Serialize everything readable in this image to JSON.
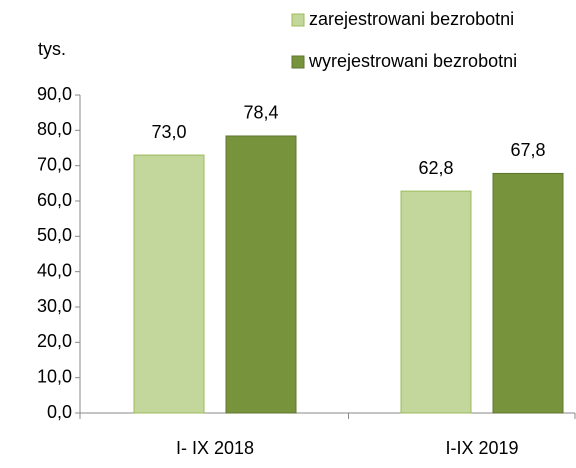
{
  "chart_data": {
    "type": "bar",
    "y_label": "tys.",
    "categories": [
      "I- IX 2018",
      "I-IX 2019"
    ],
    "series": [
      {
        "name": "zarejestrowani bezrobotni",
        "color": "#c3d69b",
        "values": [
          73.0,
          62.8
        ],
        "value_labels": [
          "73,0",
          "62,8"
        ]
      },
      {
        "name": "wyrejestrowani bezrobotni",
        "color": "#77933c",
        "values": [
          78.4,
          67.8
        ],
        "value_labels": [
          "78,4",
          "67,8"
        ]
      }
    ],
    "ylim": [
      0,
      90
    ],
    "yticks": [
      {
        "value": 0,
        "label": "0,0"
      },
      {
        "value": 10,
        "label": "10,0"
      },
      {
        "value": 20,
        "label": "20,0"
      },
      {
        "value": 30,
        "label": "30,0"
      },
      {
        "value": 40,
        "label": "40,0"
      },
      {
        "value": 50,
        "label": "50,0"
      },
      {
        "value": 60,
        "label": "60,0"
      },
      {
        "value": 70,
        "label": "70,0"
      },
      {
        "value": 80,
        "label": "80,0"
      },
      {
        "value": 90,
        "label": "90,0"
      }
    ],
    "legend": "top-right",
    "grid": false
  }
}
